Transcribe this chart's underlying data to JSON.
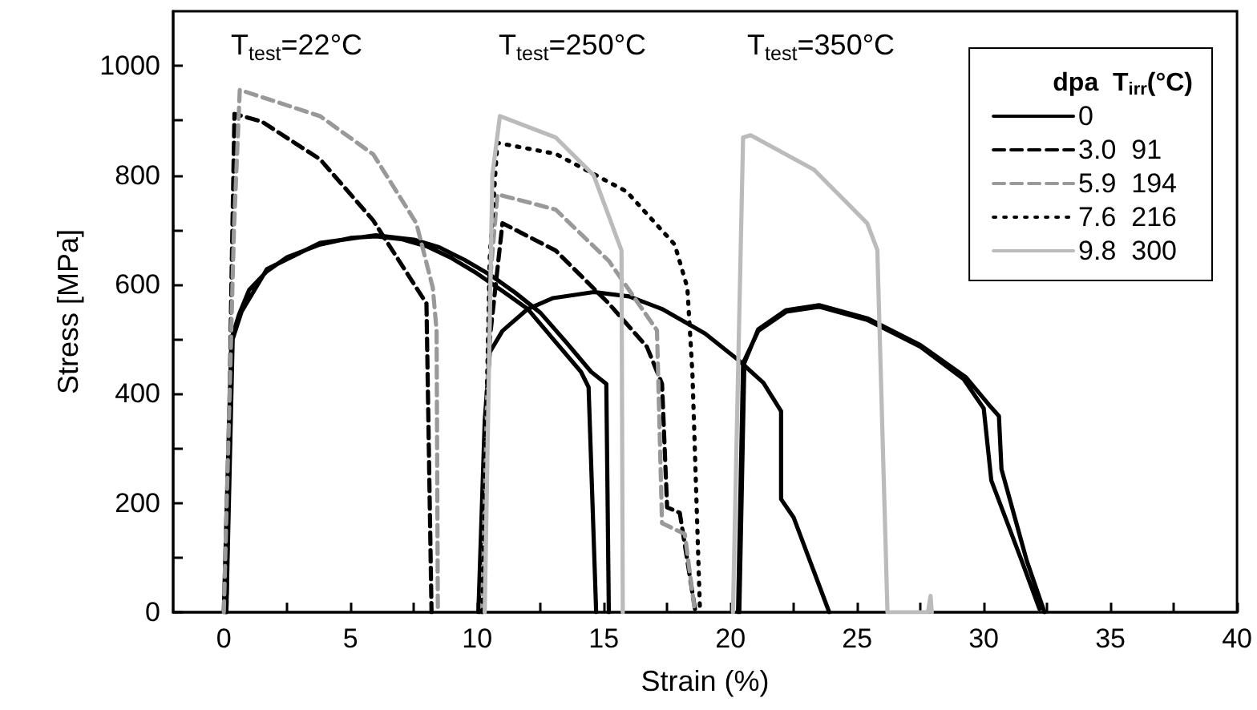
{
  "chart_data": {
    "type": "line",
    "xlabel": "Strain (%)",
    "ylabel": "Stress [MPa]",
    "legend_title": "dpa  T$_{irr}$(°C)",
    "legend": "top right",
    "grid": false,
    "marker": "none",
    "xlim": [
      -2,
      40
    ],
    "ylim": [
      0,
      1100
    ],
    "xticks": [
      0,
      {
        "value": 2.5,
        "label": null
      },
      5,
      {
        "value": 7.5,
        "label": null
      },
      10,
      {
        "value": 12.5,
        "label": null
      },
      15,
      {
        "value": 17.5,
        "label": null
      },
      20,
      {
        "value": 22.5,
        "label": null
      },
      25,
      {
        "value": 27.5,
        "label": null
      },
      30,
      {
        "value": 32.5,
        "label": null
      },
      35,
      {
        "value": 37.5,
        "label": null
      },
      40
    ],
    "yticks": [
      0,
      {
        "value": 100,
        "label": null
      },
      200,
      {
        "value": 300,
        "label": null
      },
      400,
      {
        "value": 500,
        "label": null
      },
      600,
      {
        "value": 700,
        "label": null
      },
      800,
      {
        "value": 900,
        "label": null
      },
      1000
    ],
    "annotations": [
      "T$_{test}$=22°C",
      "T$_{test}$=250°C",
      "T$_{test}$=350°C"
    ],
    "series": [
      {
        "name": "0",
        "color": "#000000",
        "line_style": "solid",
        "x": [
          0,
          0.3,
          0.6,
          1,
          1.7,
          2.5,
          3.8,
          5,
          6,
          7,
          8,
          9,
          10,
          11,
          12,
          13,
          14.1,
          14.4,
          14.7,
          null,
          0.1,
          0.35,
          0.7,
          1.7,
          3.8,
          6,
          7.5,
          8.5,
          9.5,
          10.5,
          11.5,
          12.5,
          13.5,
          14.5,
          15.1,
          15.2,
          null,
          10.05,
          10.3,
          10.5,
          11,
          12,
          13,
          14.6,
          16,
          17.3,
          19,
          20.3,
          21.3,
          22,
          22,
          22.5,
          23.9,
          null,
          20.3,
          20.5,
          21.1,
          22.2,
          23.5,
          25.4,
          27.5,
          29.2,
          30,
          30.3,
          31.5,
          32.2,
          null,
          20.35,
          20.55,
          21.1,
          22.2,
          23.5,
          25.4,
          27.5,
          29.3,
          30.2,
          30.6,
          30.7,
          31.7,
          32.4
        ],
        "values": [
          0,
          500,
          545,
          590,
          624,
          650,
          673,
          685,
          688,
          683,
          670,
          648,
          620,
          588,
          555,
          500,
          440,
          412,
          0,
          null,
          0,
          500,
          550,
          628,
          676,
          690,
          682,
          668,
          645,
          618,
          585,
          548,
          495,
          440,
          418,
          0,
          null,
          0,
          350,
          476,
          515,
          555,
          575,
          586,
          578,
          555,
          510,
          462,
          420,
          368,
          207,
          173,
          0,
          null,
          0,
          456,
          515,
          550,
          559,
          535,
          486,
          427,
          373,
          241,
          94,
          6,
          null,
          0,
          456,
          518,
          553,
          562,
          538,
          489,
          430,
          380,
          359,
          262,
          94,
          0
        ]
      },
      {
        "name": "3.0  91",
        "color": "#000000",
        "line_style": "dashed",
        "x": [
          0.1,
          0.3,
          0.42,
          1.5,
          3.8,
          5.9,
          8,
          8.2,
          null,
          10.1,
          10.5,
          11,
          13.1,
          15.2,
          16.7,
          17.3,
          17.5,
          18,
          18.6
        ],
        "values": [
          0,
          600,
          912,
          898,
          829,
          717,
          565,
          0,
          null,
          0,
          500,
          712,
          662,
          565,
          486,
          418,
          192,
          182,
          6
        ]
      },
      {
        "name": "5.9  194",
        "color": "#999999",
        "line_style": "dashed",
        "x": [
          0,
          0.4,
          0.63,
          3.8,
          5.9,
          7.6,
          8.25,
          8.4,
          8.45,
          null,
          10.2,
          10.5,
          10.8,
          13.1,
          15.2,
          17.1,
          17.3,
          18.2,
          18.6
        ],
        "values": [
          0,
          700,
          956,
          908,
          838,
          712,
          594,
          515,
          0,
          null,
          0,
          600,
          765,
          737,
          643,
          516,
          163,
          143,
          0
        ]
      },
      {
        "name": "7.6  216",
        "color": "#000000",
        "line_style": "dotted",
        "x": [
          10.2,
          10.5,
          10.8,
          13.1,
          15.9,
          17.8,
          18.3,
          18.5,
          18.8
        ],
        "values": [
          0,
          650,
          859,
          839,
          770,
          673,
          594,
          437,
          0
        ]
      },
      {
        "name": "9.8  300",
        "color": "#bbbbbb",
        "line_style": "solid",
        "x": [
          10.3,
          10.6,
          10.9,
          13.1,
          14.6,
          15.7,
          15.75,
          null,
          20.1,
          20.5,
          20.8,
          23.3,
          25.4,
          25.8,
          26.2,
          27.8,
          27.9,
          27.95
        ],
        "values": [
          0,
          800,
          908,
          869,
          800,
          662,
          0,
          null,
          0,
          869,
          873,
          810,
          712,
          663,
          0,
          0,
          30,
          0
        ]
      }
    ]
  }
}
